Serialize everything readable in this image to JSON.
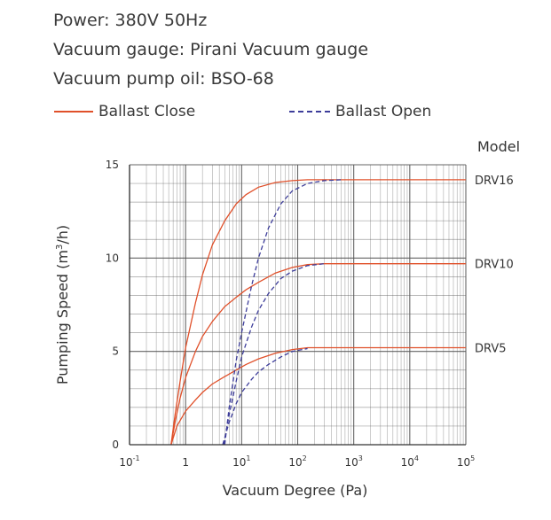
{
  "specs": [
    "Power: 380V 50Hz",
    "Vacuum gauge: Pirani Vacuum gauge",
    "Vacuum pump oil: BSO-68"
  ],
  "legend": {
    "close_label": "Ballast Close",
    "open_label": "Ballast Open"
  },
  "colors": {
    "ballast_close": "#e0502a",
    "ballast_open": "#3d3d9a",
    "grid": "#555555",
    "text": "#333333"
  },
  "chart_data": {
    "type": "line",
    "xlabel": "Vacuum Degree (Pa)",
    "ylabel_main": "Pumping Speed (m",
    "ylabel_sup": "3",
    "ylabel_tail": "/h)",
    "x_scale": "log",
    "xlim": [
      0.1,
      100000
    ],
    "ylim": [
      0,
      15
    ],
    "x_ticks": [
      {
        "value": 0.1,
        "base": "10",
        "exp": "-1"
      },
      {
        "value": 1,
        "base": "1",
        "exp": ""
      },
      {
        "value": 10,
        "base": "10",
        "exp": "1"
      },
      {
        "value": 100,
        "base": "10",
        "exp": "2"
      },
      {
        "value": 1000,
        "base": "10",
        "exp": "3"
      },
      {
        "value": 10000,
        "base": "10",
        "exp": "4"
      },
      {
        "value": 100000,
        "base": "10",
        "exp": "5"
      }
    ],
    "y_ticks": [
      0,
      5,
      10,
      15
    ],
    "models_heading": "Model",
    "series": [
      {
        "name": "Ballast Close",
        "model": "DRV16",
        "style": "solid",
        "x": [
          0.55,
          0.65,
          0.8,
          1,
          1.5,
          2,
          3,
          5,
          8,
          12,
          20,
          40,
          80,
          150,
          300,
          600,
          1000,
          100000
        ],
        "y": [
          0,
          1.6,
          3.4,
          5.2,
          7.6,
          9.1,
          10.7,
          12.0,
          12.9,
          13.4,
          13.8,
          14.05,
          14.15,
          14.2,
          14.2,
          14.2,
          14.2,
          14.2
        ]
      },
      {
        "name": "Ballast Close",
        "model": "DRV10",
        "style": "solid",
        "x": [
          0.55,
          0.65,
          0.8,
          1,
          1.5,
          2,
          3,
          5,
          8,
          12,
          20,
          40,
          80,
          150,
          300,
          600,
          100000
        ],
        "y": [
          0,
          1.2,
          2.5,
          3.6,
          5.0,
          5.8,
          6.6,
          7.4,
          7.9,
          8.3,
          8.7,
          9.2,
          9.5,
          9.65,
          9.7,
          9.7,
          9.7
        ]
      },
      {
        "name": "Ballast Close",
        "model": "DRV5",
        "style": "solid",
        "x": [
          0.55,
          0.7,
          1,
          1.5,
          2,
          3,
          5,
          8,
          12,
          20,
          40,
          80,
          150,
          300,
          600,
          100000
        ],
        "y": [
          0,
          1.0,
          1.8,
          2.4,
          2.8,
          3.25,
          3.65,
          4.0,
          4.3,
          4.6,
          4.9,
          5.1,
          5.2,
          5.2,
          5.2,
          5.2
        ]
      },
      {
        "name": "Ballast Open",
        "model": "DRV16",
        "style": "dashed",
        "x": [
          5,
          6,
          8,
          10,
          15,
          20,
          30,
          50,
          80,
          150,
          300,
          600
        ],
        "y": [
          0,
          2.0,
          4.5,
          6.0,
          8.5,
          10.0,
          11.6,
          12.9,
          13.6,
          14.0,
          14.15,
          14.2
        ]
      },
      {
        "name": "Ballast Open",
        "model": "DRV10",
        "style": "dashed",
        "x": [
          4.8,
          6,
          8,
          10,
          15,
          20,
          30,
          50,
          80,
          150,
          300
        ],
        "y": [
          0,
          1.6,
          3.4,
          4.7,
          6.3,
          7.2,
          8.1,
          8.9,
          9.3,
          9.6,
          9.7
        ]
      },
      {
        "name": "Ballast Open",
        "model": "DRV5",
        "style": "dashed",
        "x": [
          4.6,
          6,
          8,
          10,
          15,
          20,
          30,
          50,
          80,
          150
        ],
        "y": [
          0,
          1.2,
          2.2,
          2.8,
          3.5,
          3.9,
          4.3,
          4.7,
          5.0,
          5.15
        ]
      }
    ],
    "model_labels": [
      {
        "text": "DRV16",
        "y": 14.2
      },
      {
        "text": "DRV10",
        "y": 9.7
      },
      {
        "text": "DRV5",
        "y": 5.2
      }
    ],
    "grid": true
  }
}
